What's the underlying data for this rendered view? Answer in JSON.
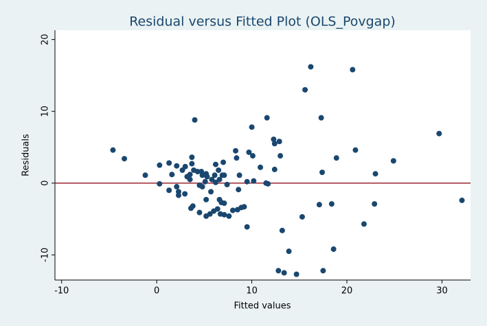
{
  "chart_data": {
    "type": "scatter",
    "title": "Residual versus Fitted Plot (OLS_Povgap)",
    "x_label": "Fitted values",
    "y_label": "Residuals",
    "xlim": [
      -10.7,
      33
    ],
    "ylim": [
      -13.5,
      21.3
    ],
    "xticks": [
      -10,
      0,
      10,
      20,
      30
    ],
    "yticks": [
      -10,
      0,
      10,
      20
    ],
    "grid": false,
    "color": "#1a476f",
    "reference_line": 0,
    "reference_color": "#90101e",
    "x": [
      -4.6,
      -3.4,
      -1.2,
      0.3,
      0.3,
      1.3,
      1.3,
      1.6,
      2.1,
      2.1,
      2.3,
      2.3,
      2.7,
      2.96,
      3.0,
      3.2,
      3.5,
      3.5,
      3.6,
      3.8,
      3.7,
      3.7,
      3.9,
      4.0,
      4.3,
      4.5,
      4.5,
      4.7,
      4.8,
      4.8,
      5.1,
      5.2,
      5.2,
      5.2,
      5.3,
      5.6,
      5.7,
      5.8,
      6.0,
      6.1,
      6.2,
      6.2,
      6.4,
      6.5,
      6.6,
      6.6,
      6.7,
      6.8,
      6.9,
      7.0,
      7.1,
      7.1,
      7.1,
      7.4,
      7.6,
      8.0,
      8.3,
      8.4,
      8.5,
      8.6,
      8.7,
      8.9,
      9.2,
      9.5,
      9.5,
      9.7,
      10.0,
      10.1,
      10.2,
      10.9,
      11.5,
      11.6,
      11.7,
      12.3,
      12.4,
      12.4,
      12.8,
      12.9,
      13.0,
      13.2,
      13.4,
      13.9,
      14.7,
      15.3,
      15.6,
      16.2,
      17.1,
      17.3,
      17.4,
      17.5,
      18.4,
      18.6,
      18.9,
      20.6,
      20.9,
      21.8,
      22.9,
      23.0,
      24.9,
      29.7,
      32.1
    ],
    "values": [
      4.6,
      3.4,
      1.1,
      2.5,
      -0.1,
      2.8,
      -1.0,
      1.2,
      2.4,
      -0.5,
      -1.2,
      -1.7,
      1.8,
      -1.5,
      2.3,
      0.9,
      0.5,
      1.2,
      -3.5,
      -3.2,
      3.6,
      2.7,
      1.8,
      8.8,
      1.6,
      -0.3,
      -4.1,
      1.6,
      1.1,
      -0.5,
      0.2,
      1.3,
      -2.3,
      -4.6,
      0.9,
      -4.3,
      -1.2,
      0.5,
      -3.9,
      1.1,
      2.6,
      0.1,
      -3.6,
      1.8,
      0.5,
      -2.3,
      -4.3,
      -2.7,
      1.1,
      2.9,
      1.1,
      -2.8,
      -4.4,
      -0.2,
      -4.6,
      -3.8,
      4.5,
      3.5,
      -3.7,
      -0.9,
      1.1,
      -3.4,
      -3.3,
      -6.1,
      0.2,
      4.3,
      7.8,
      3.8,
      0.3,
      2.2,
      0.0,
      9.1,
      -0.1,
      6.1,
      5.5,
      1.9,
      -12.2,
      5.8,
      3.8,
      -6.6,
      -12.5,
      -9.5,
      -12.7,
      -4.7,
      13.0,
      16.2,
      -3.0,
      9.1,
      1.5,
      -12.2,
      -2.9,
      -9.2,
      3.5,
      15.8,
      4.6,
      -5.7,
      -2.9,
      1.3,
      3.1,
      6.9,
      -2.4
    ]
  }
}
